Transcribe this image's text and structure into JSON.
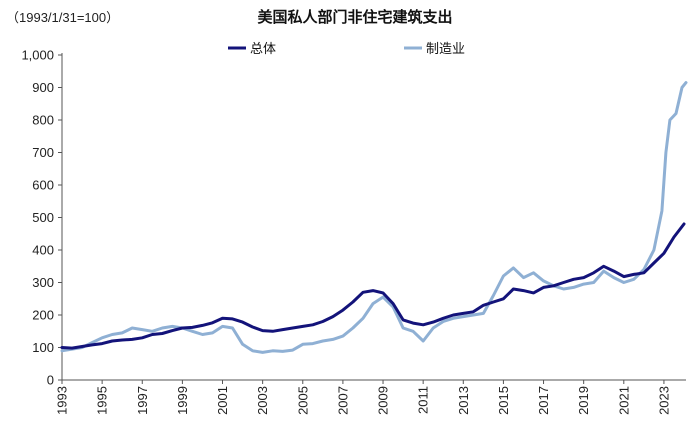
{
  "chart_data": {
    "type": "line",
    "title": "美国私人部门非住宅建筑支出",
    "unit_note": "（1993/1/31=100）",
    "xlabel": "",
    "ylabel": "",
    "xlim": [
      1993.0,
      2024.1
    ],
    "ylim": [
      0,
      1000
    ],
    "y_ticks": [
      "0",
      "100",
      "200",
      "300",
      "400",
      "500",
      "600",
      "700",
      "800",
      "900",
      "1,000"
    ],
    "y_tick_values": [
      0,
      100,
      200,
      300,
      400,
      500,
      600,
      700,
      800,
      900,
      1000
    ],
    "x_ticks": [
      "1993",
      "1995",
      "1997",
      "1999",
      "2001",
      "2003",
      "2005",
      "2007",
      "2009",
      "2011",
      "2013",
      "2015",
      "2017",
      "2019",
      "2021",
      "2023"
    ],
    "x_tick_values": [
      1993,
      1995,
      1997,
      1999,
      2001,
      2003,
      2005,
      2007,
      2009,
      2011,
      2013,
      2015,
      2017,
      2019,
      2021,
      2023
    ],
    "legend_position": "top-center",
    "grid": false,
    "series": [
      {
        "name": "总体",
        "color": "#13137a",
        "points": [
          [
            1993.0,
            100
          ],
          [
            1993.5,
            98
          ],
          [
            1994.0,
            103
          ],
          [
            1994.5,
            108
          ],
          [
            1995.0,
            112
          ],
          [
            1995.5,
            120
          ],
          [
            1996.0,
            123
          ],
          [
            1996.5,
            125
          ],
          [
            1997.0,
            130
          ],
          [
            1997.5,
            140
          ],
          [
            1998.0,
            143
          ],
          [
            1998.5,
            152
          ],
          [
            1999.0,
            160
          ],
          [
            1999.5,
            162
          ],
          [
            2000.0,
            168
          ],
          [
            2000.5,
            176
          ],
          [
            2001.0,
            190
          ],
          [
            2001.5,
            188
          ],
          [
            2002.0,
            178
          ],
          [
            2002.5,
            163
          ],
          [
            2003.0,
            152
          ],
          [
            2003.5,
            150
          ],
          [
            2004.0,
            155
          ],
          [
            2004.5,
            160
          ],
          [
            2005.0,
            165
          ],
          [
            2005.5,
            170
          ],
          [
            2006.0,
            180
          ],
          [
            2006.5,
            195
          ],
          [
            2007.0,
            215
          ],
          [
            2007.5,
            240
          ],
          [
            2008.0,
            270
          ],
          [
            2008.5,
            275
          ],
          [
            2009.0,
            268
          ],
          [
            2009.5,
            235
          ],
          [
            2010.0,
            185
          ],
          [
            2010.5,
            175
          ],
          [
            2011.0,
            170
          ],
          [
            2011.5,
            178
          ],
          [
            2012.0,
            190
          ],
          [
            2012.5,
            200
          ],
          [
            2013.0,
            205
          ],
          [
            2013.5,
            210
          ],
          [
            2014.0,
            230
          ],
          [
            2014.5,
            240
          ],
          [
            2015.0,
            250
          ],
          [
            2015.5,
            280
          ],
          [
            2016.0,
            275
          ],
          [
            2016.5,
            268
          ],
          [
            2017.0,
            285
          ],
          [
            2017.5,
            290
          ],
          [
            2018.0,
            300
          ],
          [
            2018.5,
            310
          ],
          [
            2019.0,
            315
          ],
          [
            2019.5,
            330
          ],
          [
            2020.0,
            350
          ],
          [
            2020.5,
            335
          ],
          [
            2021.0,
            318
          ],
          [
            2021.5,
            325
          ],
          [
            2022.0,
            330
          ],
          [
            2022.5,
            360
          ],
          [
            2023.0,
            390
          ],
          [
            2023.5,
            440
          ],
          [
            2024.0,
            480
          ]
        ]
      },
      {
        "name": "制造业",
        "color": "#8fb0d4",
        "points": [
          [
            1993.0,
            90
          ],
          [
            1993.5,
            95
          ],
          [
            1994.0,
            100
          ],
          [
            1994.5,
            115
          ],
          [
            1995.0,
            130
          ],
          [
            1995.5,
            140
          ],
          [
            1996.0,
            145
          ],
          [
            1996.5,
            160
          ],
          [
            1997.0,
            155
          ],
          [
            1997.5,
            150
          ],
          [
            1998.0,
            160
          ],
          [
            1998.5,
            165
          ],
          [
            1999.0,
            160
          ],
          [
            1999.5,
            150
          ],
          [
            2000.0,
            140
          ],
          [
            2000.5,
            145
          ],
          [
            2001.0,
            165
          ],
          [
            2001.5,
            160
          ],
          [
            2002.0,
            110
          ],
          [
            2002.5,
            90
          ],
          [
            2003.0,
            85
          ],
          [
            2003.5,
            90
          ],
          [
            2004.0,
            88
          ],
          [
            2004.5,
            92
          ],
          [
            2005.0,
            110
          ],
          [
            2005.5,
            112
          ],
          [
            2006.0,
            120
          ],
          [
            2006.5,
            125
          ],
          [
            2007.0,
            135
          ],
          [
            2007.5,
            160
          ],
          [
            2008.0,
            190
          ],
          [
            2008.5,
            235
          ],
          [
            2009.0,
            255
          ],
          [
            2009.5,
            225
          ],
          [
            2010.0,
            160
          ],
          [
            2010.5,
            150
          ],
          [
            2011.0,
            120
          ],
          [
            2011.5,
            160
          ],
          [
            2012.0,
            180
          ],
          [
            2012.5,
            190
          ],
          [
            2013.0,
            195
          ],
          [
            2013.5,
            200
          ],
          [
            2014.0,
            205
          ],
          [
            2014.5,
            260
          ],
          [
            2015.0,
            320
          ],
          [
            2015.5,
            345
          ],
          [
            2016.0,
            315
          ],
          [
            2016.5,
            330
          ],
          [
            2017.0,
            305
          ],
          [
            2017.5,
            290
          ],
          [
            2018.0,
            280
          ],
          [
            2018.5,
            285
          ],
          [
            2019.0,
            295
          ],
          [
            2019.5,
            300
          ],
          [
            2020.0,
            335
          ],
          [
            2020.5,
            315
          ],
          [
            2021.0,
            300
          ],
          [
            2021.5,
            310
          ],
          [
            2022.0,
            340
          ],
          [
            2022.5,
            400
          ],
          [
            2022.9,
            520
          ],
          [
            2023.1,
            700
          ],
          [
            2023.3,
            800
          ],
          [
            2023.6,
            820
          ],
          [
            2023.9,
            900
          ],
          [
            2024.1,
            915
          ]
        ]
      }
    ]
  }
}
